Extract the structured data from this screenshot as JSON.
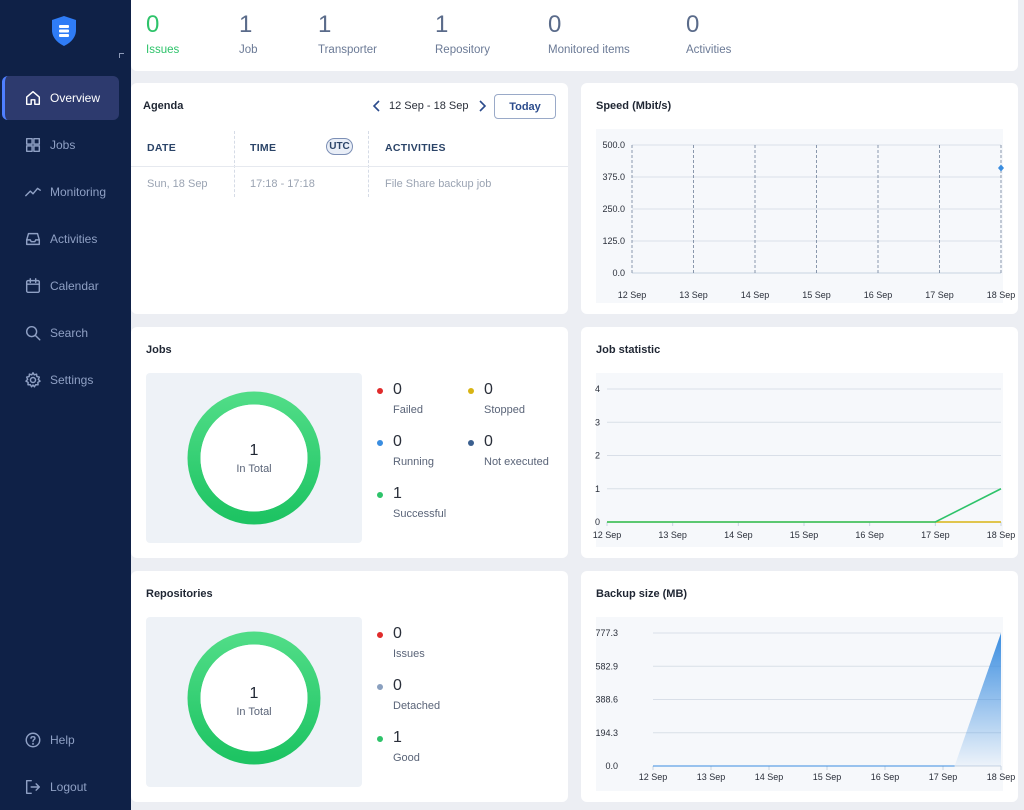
{
  "colors": {
    "sidebar_bg": "#0f2147",
    "accent_blue": "#4f7fff",
    "success_green": "#2ec36a",
    "failed_red": "#e02b2b",
    "stopped_yellow": "#d8b414",
    "running_blue": "#3a8de0",
    "not_executed_navy": "#3b5f8f",
    "detached_gray": "#8aa0bf"
  },
  "sidebar": {
    "logo_icon": "shield-server-icon",
    "items": [
      {
        "label": "Overview",
        "icon": "home-icon",
        "active": true
      },
      {
        "label": "Jobs",
        "icon": "grid-icon"
      },
      {
        "label": "Monitoring",
        "icon": "activity-line-icon"
      },
      {
        "label": "Activities",
        "icon": "inbox-icon"
      },
      {
        "label": "Calendar",
        "icon": "calendar-icon"
      },
      {
        "label": "Search",
        "icon": "search-icon"
      },
      {
        "label": "Settings",
        "icon": "gear-icon"
      }
    ],
    "bottom": [
      {
        "label": "Help",
        "icon": "help-circle-icon"
      },
      {
        "label": "Logout",
        "icon": "logout-icon"
      }
    ]
  },
  "summary": [
    {
      "value": "0",
      "label": "Issues"
    },
    {
      "value": "1",
      "label": "Job"
    },
    {
      "value": "1",
      "label": "Transporter"
    },
    {
      "value": "1",
      "label": "Repository"
    },
    {
      "value": "0",
      "label": "Monitored items"
    },
    {
      "value": "0",
      "label": "Activities"
    }
  ],
  "agenda": {
    "title": "Agenda",
    "range": "12 Sep - 18 Sep",
    "today_label": "Today",
    "columns": {
      "date": "DATE",
      "time": "TIME",
      "utc": "UTC",
      "activities": "ACTIVITIES"
    },
    "rows": [
      {
        "date": "Sun, 18 Sep",
        "time": "17:18 - 17:18",
        "activity": "File Share backup job"
      }
    ]
  },
  "jobs": {
    "title": "Jobs",
    "total": "1",
    "total_label": "In Total",
    "legend": [
      {
        "value": "0",
        "label": "Failed",
        "color": "#e02b2b"
      },
      {
        "value": "0",
        "label": "Stopped",
        "color": "#d8b414"
      },
      {
        "value": "0",
        "label": "Running",
        "color": "#3a8de0"
      },
      {
        "value": "0",
        "label": "Not executed",
        "color": "#3b5f8f"
      },
      {
        "value": "1",
        "label": "Successful",
        "color": "#2ec36a"
      }
    ]
  },
  "repositories": {
    "title": "Repositories",
    "total": "1",
    "total_label": "In Total",
    "legend": [
      {
        "value": "0",
        "label": "Issues",
        "color": "#e02b2b"
      },
      {
        "value": "0",
        "label": "Detached",
        "color": "#8aa0bf"
      },
      {
        "value": "1",
        "label": "Good",
        "color": "#2ec36a"
      }
    ]
  },
  "chart_data": [
    {
      "type": "scatter",
      "title": "Speed (Mbit/s)",
      "categories": [
        "12 Sep",
        "13 Sep",
        "14 Sep",
        "15 Sep",
        "16 Sep",
        "17 Sep",
        "18 Sep"
      ],
      "yticks": [
        "0.0",
        "125.0",
        "250.0",
        "375.0",
        "500.0"
      ],
      "ylim": [
        0,
        500
      ],
      "series": [
        {
          "values": [
            null,
            null,
            null,
            null,
            null,
            null,
            410
          ]
        }
      ],
      "grid": true
    },
    {
      "type": "line",
      "title": "Job statistic",
      "categories": [
        "12 Sep",
        "13 Sep",
        "14 Sep",
        "15 Sep",
        "16 Sep",
        "17 Sep",
        "18 Sep"
      ],
      "yticks": [
        "0",
        "1",
        "2",
        "3",
        "4"
      ],
      "ylim": [
        0,
        4
      ],
      "series": [
        {
          "color": "#d8b414",
          "values": [
            0,
            0,
            0,
            0,
            0,
            0,
            0
          ]
        },
        {
          "color": "#2ec36a",
          "values": [
            0,
            0,
            0,
            0,
            0,
            0,
            1
          ]
        }
      ],
      "grid": true
    },
    {
      "type": "area",
      "title": "Backup size (MB)",
      "categories": [
        "12 Sep",
        "13 Sep",
        "14 Sep",
        "15 Sep",
        "16 Sep",
        "17 Sep",
        "18 Sep"
      ],
      "yticks": [
        "0.0",
        "194.3",
        "388.6",
        "582.9",
        "777.3"
      ],
      "ylim": [
        0,
        777.3
      ],
      "series": [
        {
          "color": "#3a8de0",
          "values": [
            0,
            0,
            0,
            0,
            0,
            0,
            777.3
          ]
        }
      ],
      "grid": true
    }
  ]
}
